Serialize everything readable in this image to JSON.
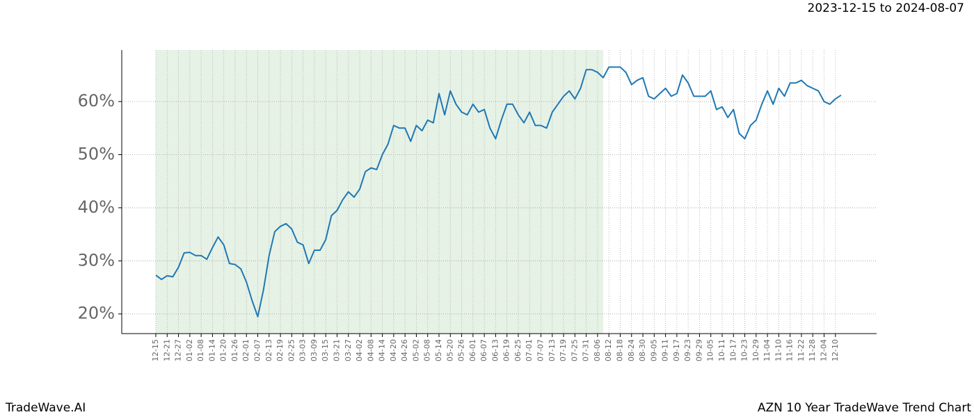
{
  "header": "2023-12-15 to 2024-08-07",
  "footer": {
    "left": "TradeWave.AI",
    "right": "AZN 10 Year TradeWave Trend Chart"
  },
  "chart_data": {
    "type": "line",
    "categories": [
      "12-15",
      null,
      "12-21",
      null,
      "12-27",
      null,
      "01-02",
      null,
      "01-08",
      null,
      "01-14",
      null,
      "01-20",
      null,
      "01-26",
      null,
      "02-01",
      null,
      "02-07",
      null,
      "02-13",
      null,
      "02-19",
      null,
      "02-25",
      null,
      "03-03",
      null,
      "03-09",
      null,
      "03-15",
      null,
      "03-21",
      null,
      "03-27",
      null,
      "04-02",
      null,
      "04-08",
      null,
      "04-14",
      null,
      "04-20",
      null,
      "04-26",
      null,
      "05-02",
      null,
      "05-08",
      null,
      "05-14",
      null,
      "05-20",
      null,
      "05-26",
      null,
      "06-01",
      null,
      "06-07",
      null,
      "06-13",
      null,
      "06-19",
      null,
      "06-25",
      null,
      "07-01",
      null,
      "07-07",
      null,
      "07-13",
      null,
      "07-19",
      null,
      "07-25",
      null,
      "07-31",
      null,
      "08-06",
      null,
      "08-12",
      null,
      "08-18",
      null,
      "08-24",
      null,
      "08-30",
      null,
      "09-05",
      null,
      "09-11",
      null,
      "09-17",
      null,
      "09-23",
      null,
      "09-29",
      null,
      "10-05",
      null,
      "10-11",
      null,
      "10-17",
      null,
      "10-23",
      null,
      "10-29",
      null,
      "11-04",
      null,
      "11-10",
      null,
      "11-16",
      null,
      "11-22",
      null,
      "11-28",
      null,
      "12-04",
      null,
      "12-10",
      null
    ],
    "series": [
      {
        "color": "#1f77b4",
        "values": [
          27.3,
          26.5,
          27.2,
          27.0,
          28.8,
          31.5,
          31.6,
          31.0,
          31.0,
          30.3,
          32.5,
          34.5,
          33.0,
          29.5,
          29.3,
          28.5,
          26.0,
          22.5,
          19.5,
          24.5,
          31.0,
          35.5,
          36.5,
          37.0,
          36.0,
          33.5,
          33.0,
          29.5,
          32.0,
          32.0,
          34.0,
          38.5,
          39.5,
          41.5,
          43.0,
          42.0,
          43.5,
          46.8,
          47.5,
          47.2,
          50.0,
          52.0,
          55.5,
          55.0,
          55.0,
          52.5,
          55.5,
          54.5,
          56.5,
          56.0,
          61.5,
          57.5,
          62.0,
          59.5,
          58.0,
          57.5,
          59.5,
          58.0,
          58.5,
          55.0,
          53.0,
          56.5,
          59.5,
          59.5,
          57.5,
          56.0,
          58.0,
          55.5,
          55.5,
          55.0,
          58.0,
          59.5,
          61.0,
          62.0,
          60.5,
          62.5,
          66.0,
          66.0,
          65.5,
          64.5,
          66.5,
          66.5,
          66.5,
          65.5,
          63.2,
          64.0,
          64.5,
          61.0,
          60.5,
          61.5,
          62.5,
          61.0,
          61.5,
          65.0,
          63.5,
          61.0,
          61.0,
          61.0,
          62.0,
          58.5,
          59.0,
          57.0,
          58.5,
          54.0,
          53.0,
          55.5,
          56.5,
          59.5,
          62.0,
          59.5,
          62.5,
          61.0,
          63.5,
          63.5,
          64.0,
          63.0,
          62.5,
          62.0,
          60.0,
          59.5,
          60.5,
          61.2
        ]
      }
    ],
    "ylim": [
      16.3,
      69.7
    ],
    "yticks": [
      {
        "value": 20,
        "label": "20%"
      },
      {
        "value": 30,
        "label": "30%"
      },
      {
        "value": 40,
        "label": "40%"
      },
      {
        "value": 50,
        "label": "50%"
      },
      {
        "value": 60,
        "label": "60%"
      }
    ],
    "grid": true,
    "highlight": {
      "from": "12-15",
      "to": "08-06",
      "color": "#e6f2e6"
    }
  }
}
